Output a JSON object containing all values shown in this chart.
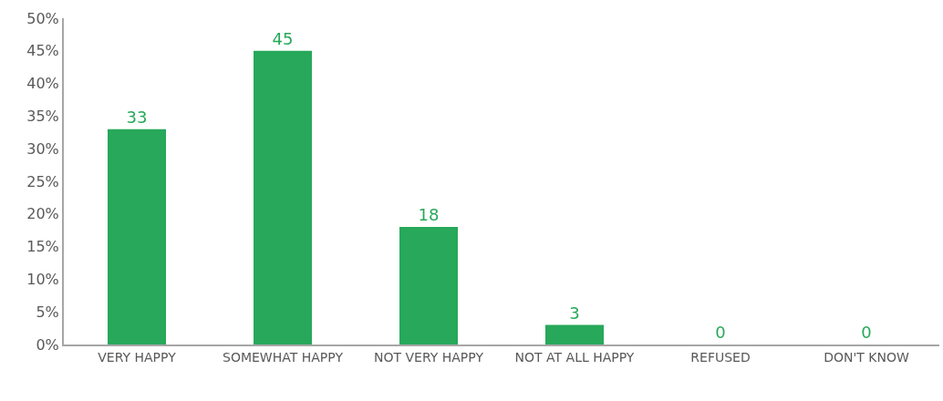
{
  "chart_data": {
    "type": "bar",
    "categories": [
      "VERY HAPPY",
      "SOMEWHAT HAPPY",
      "NOT VERY HAPPY",
      "NOT AT ALL HAPPY",
      "REFUSED",
      "DON'T KNOW"
    ],
    "values": [
      33,
      45,
      18,
      3,
      0,
      0
    ],
    "color": "#27a85a",
    "data_labels": true,
    "ylim": [
      0,
      50
    ],
    "yticks": [
      {
        "value": 0,
        "label": "0%"
      },
      {
        "value": 5,
        "label": "5%"
      },
      {
        "value": 10,
        "label": "10%"
      },
      {
        "value": 15,
        "label": "15%"
      },
      {
        "value": 20,
        "label": "20%"
      },
      {
        "value": 25,
        "label": "25%"
      },
      {
        "value": 30,
        "label": "30%"
      },
      {
        "value": 35,
        "label": "35%"
      },
      {
        "value": 40,
        "label": "40%"
      },
      {
        "value": 45,
        "label": "45%"
      },
      {
        "value": 50,
        "label": "50%"
      }
    ]
  }
}
